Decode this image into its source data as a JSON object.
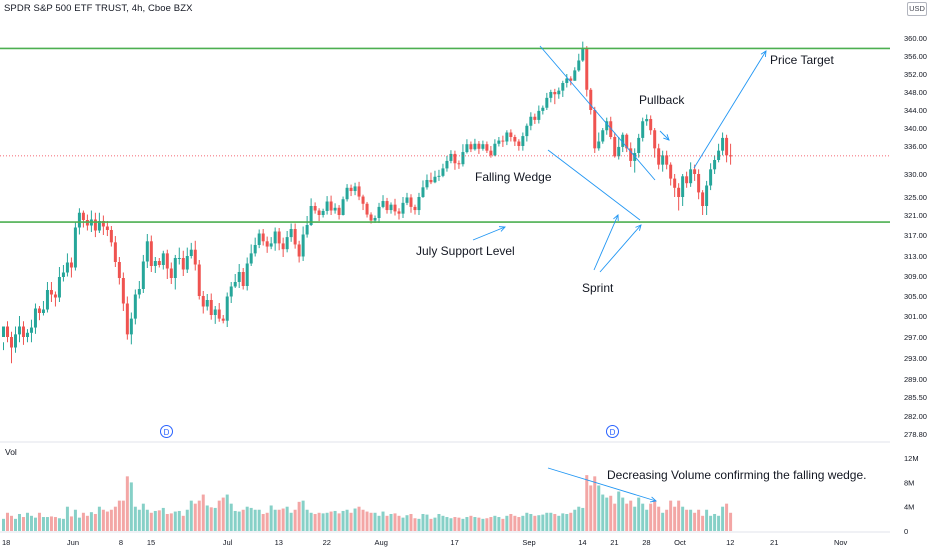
{
  "header": {
    "title": "SPDR S&P 500 ETF TRUST, 4h, Cboe BZX",
    "currency": "USD"
  },
  "volume_pane": {
    "label": "Vol"
  },
  "annotations": {
    "price_target": "Price Target",
    "pullback": "Pullback",
    "falling_wedge": "Falling Wedge",
    "july_support": "July Support Level",
    "sprint": "Sprint",
    "decreasing_volume": "Decreasing Volume confirming the falling wedge."
  },
  "markers": {
    "dividend_1": "D",
    "dividend_2": "D"
  },
  "colors": {
    "up": "#26a69a",
    "down": "#ef5350",
    "vol_up": "#86d0c7",
    "vol_down": "#f3a6a5",
    "level_line": "#4caf50",
    "drawing": "#2196f3",
    "current_price": "#f23645",
    "grid": "#f0f3fa"
  },
  "chart_data": {
    "type": "candlestick",
    "title": "SPDR S&P 500 ETF TRUST, 4h, Cboe BZX",
    "price_ticks": [
      "360.00",
      "356.00",
      "352.00",
      "348.00",
      "344.00",
      "340.00",
      "336.00",
      "330.00",
      "325.00",
      "321.00",
      "317.00",
      "313.00",
      "309.00",
      "305.00",
      "301.00",
      "297.00",
      "293.00",
      "289.00",
      "285.50",
      "282.00",
      "278.80"
    ],
    "price_tick_values": [
      360,
      356,
      352,
      348,
      344,
      340,
      336,
      330,
      325,
      321,
      317,
      313,
      309,
      305,
      301,
      297,
      293,
      289,
      285.5,
      282,
      278.8
    ],
    "volume_ticks": [
      "12M",
      "8M",
      "4M",
      "0"
    ],
    "volume_tick_values": [
      12,
      8,
      4,
      0
    ],
    "time_ticks": [
      {
        "label": "18",
        "idx": 0
      },
      {
        "label": "Jun",
        "idx": 17
      },
      {
        "label": "8",
        "idx": 30
      },
      {
        "label": "15",
        "idx": 37
      },
      {
        "label": "Jul",
        "idx": 56
      },
      {
        "label": "13",
        "idx": 69
      },
      {
        "label": "22",
        "idx": 81
      },
      {
        "label": "Aug",
        "idx": 94
      },
      {
        "label": "17",
        "idx": 113
      },
      {
        "label": "Sep",
        "idx": 131
      },
      {
        "label": "14",
        "idx": 145
      },
      {
        "label": "21",
        "idx": 153
      },
      {
        "label": "28",
        "idx": 161
      },
      {
        "label": "Oct",
        "idx": 169
      },
      {
        "label": "12",
        "idx": 182
      },
      {
        "label": "21",
        "idx": 193
      },
      {
        "label": "Nov",
        "idx": 209
      }
    ],
    "levels": [
      {
        "label": "357.69",
        "value": 357.69
      },
      {
        "label": "319.59",
        "value": 319.59
      }
    ],
    "last_price": {
      "label": "333.88",
      "value": 333.88
    },
    "candles": [
      [
        297.0,
        299.0,
        296.0,
        294.5,
        2.0
      ],
      [
        299.0,
        297.0,
        300.0,
        296.0,
        3.0
      ],
      [
        297.0,
        295.0,
        298.0,
        292.0,
        2.5
      ],
      [
        295.0,
        297.5,
        299.0,
        294.0,
        2.0
      ],
      [
        297.5,
        299.0,
        301.0,
        296.0,
        2.8
      ],
      [
        299.0,
        297.0,
        300.0,
        295.5,
        2.3
      ],
      [
        297.0,
        297.8,
        298.5,
        296.0,
        3.0
      ],
      [
        297.8,
        298.8,
        300.3,
        296.0,
        2.5
      ],
      [
        298.8,
        302.5,
        303.5,
        297.6,
        2.2
      ],
      [
        302.5,
        301.6,
        303.0,
        300.2,
        3.0
      ],
      [
        301.6,
        302.3,
        304.0,
        301.1,
        2.3
      ],
      [
        302.3,
        306.2,
        307.8,
        301.7,
        2.3
      ],
      [
        306.2,
        305.3,
        307.8,
        303.8,
        2.4
      ],
      [
        305.3,
        304.7,
        305.9,
        302.9,
        2.3
      ],
      [
        304.7,
        308.8,
        310.8,
        303.8,
        2.1
      ],
      [
        308.8,
        309.7,
        311.2,
        307.9,
        2.0
      ],
      [
        309.7,
        311.7,
        313.5,
        308.9,
        4.0
      ],
      [
        311.7,
        310.7,
        312.7,
        308.7,
        2.4
      ],
      [
        310.7,
        318.5,
        319.5,
        310.1,
        3.5
      ],
      [
        318.5,
        321.5,
        322.5,
        317.1,
        2.2
      ],
      [
        321.5,
        320.0,
        322.0,
        318.5,
        3.0
      ],
      [
        320.0,
        318.9,
        321.1,
        317.9,
        2.5
      ],
      [
        318.9,
        320.1,
        322.0,
        317.6,
        3.1
      ],
      [
        320.1,
        317.9,
        321.5,
        316.6,
        2.8
      ],
      [
        317.9,
        319.8,
        321.5,
        317.4,
        4.0
      ],
      [
        319.8,
        318.7,
        320.9,
        317.0,
        3.5
      ],
      [
        318.7,
        318.0,
        319.8,
        316.8,
        3.2
      ],
      [
        318.0,
        315.6,
        318.8,
        314.8,
        3.5
      ],
      [
        315.6,
        311.8,
        316.8,
        310.8,
        4.0
      ],
      [
        311.8,
        308.6,
        312.8,
        307.3,
        5.0
      ],
      [
        308.6,
        303.5,
        309.7,
        302.0,
        5.0
      ],
      [
        303.5,
        297.5,
        304.9,
        296.5,
        9.0
      ],
      [
        297.5,
        300.5,
        301.7,
        295.6,
        8.0
      ],
      [
        300.5,
        305.3,
        306.3,
        299.4,
        4.0
      ],
      [
        305.3,
        306.4,
        308.0,
        304.5,
        3.5
      ],
      [
        306.4,
        311.9,
        313.2,
        305.6,
        4.5
      ],
      [
        311.9,
        315.8,
        317.2,
        310.6,
        3.5
      ],
      [
        315.8,
        311.0,
        316.9,
        309.8,
        3.0
      ],
      [
        311.0,
        312.0,
        312.8,
        309.6,
        3.3
      ],
      [
        312.0,
        311.2,
        312.6,
        310.7,
        3.4
      ],
      [
        311.2,
        313.5,
        314.0,
        310.3,
        3.8
      ],
      [
        313.5,
        310.5,
        314.2,
        308.4,
        2.8
      ],
      [
        310.5,
        308.6,
        311.7,
        307.4,
        2.9
      ],
      [
        308.6,
        312.6,
        313.2,
        306.3,
        3.2
      ],
      [
        312.6,
        312.6,
        314.6,
        311.3,
        3.3
      ],
      [
        312.6,
        310.3,
        314.0,
        309.0,
        2.5
      ],
      [
        310.3,
        313.0,
        314.6,
        309.6,
        3.5
      ],
      [
        313.0,
        314.2,
        315.5,
        312.5,
        5.0
      ],
      [
        314.2,
        311.3,
        315.9,
        310.1,
        4.5
      ],
      [
        311.3,
        305.0,
        312.2,
        304.3,
        5.0
      ],
      [
        305.0,
        302.9,
        306.0,
        301.5,
        6.0
      ],
      [
        302.9,
        304.2,
        305.4,
        302.1,
        4.2
      ],
      [
        304.2,
        301.2,
        305.5,
        300.3,
        3.9
      ],
      [
        301.2,
        302.3,
        303.0,
        299.5,
        3.8
      ],
      [
        302.3,
        300.5,
        303.6,
        299.9,
        5.0
      ],
      [
        300.5,
        300.1,
        301.2,
        299.6,
        5.5
      ],
      [
        300.1,
        304.9,
        305.7,
        298.9,
        6.0
      ],
      [
        304.9,
        306.9,
        307.8,
        303.6,
        4.5
      ],
      [
        306.9,
        307.8,
        309.4,
        306.6,
        3.3
      ],
      [
        307.8,
        309.8,
        311.4,
        306.6,
        3.2
      ],
      [
        309.8,
        307.0,
        310.6,
        306.3,
        3.5
      ],
      [
        307.0,
        311.5,
        312.7,
        306.1,
        4.0
      ],
      [
        311.5,
        313.5,
        315.2,
        311.0,
        3.8
      ],
      [
        313.5,
        315.1,
        316.5,
        312.9,
        3.5
      ],
      [
        315.1,
        317.3,
        318.1,
        314.5,
        3.5
      ],
      [
        317.3,
        315.8,
        318.2,
        315.0,
        2.8
      ],
      [
        315.8,
        314.8,
        316.7,
        313.6,
        3.0
      ],
      [
        314.8,
        315.4,
        316.6,
        314.3,
        4.2
      ],
      [
        315.4,
        317.7,
        318.5,
        314.0,
        3.5
      ],
      [
        317.7,
        315.4,
        318.4,
        314.1,
        3.5
      ],
      [
        315.4,
        314.3,
        316.5,
        312.8,
        3.7
      ],
      [
        314.3,
        316.6,
        317.8,
        313.7,
        4.0
      ],
      [
        316.6,
        318.2,
        319.3,
        315.7,
        3.0
      ],
      [
        318.2,
        315.2,
        319.3,
        314.4,
        3.5
      ],
      [
        315.2,
        312.9,
        315.9,
        311.7,
        4.8
      ],
      [
        312.9,
        317.1,
        318.7,
        312.0,
        5.0
      ],
      [
        317.1,
        319.0,
        320.8,
        316.5,
        3.5
      ],
      [
        319.0,
        323.0,
        324.7,
        318.8,
        3.0
      ],
      [
        323.0,
        322.0,
        323.8,
        321.3,
        2.8
      ],
      [
        322.0,
        321.0,
        322.5,
        319.8,
        3.0
      ],
      [
        321.0,
        321.9,
        322.4,
        320.5,
        2.9
      ],
      [
        321.9,
        324.0,
        325.2,
        321.1,
        3.0
      ],
      [
        324.0,
        322.0,
        325.3,
        321.0,
        3.2
      ],
      [
        322.0,
        322.6,
        323.6,
        321.3,
        3.3
      ],
      [
        322.6,
        321.0,
        323.2,
        320.1,
        2.9
      ],
      [
        321.0,
        324.5,
        325.1,
        320.9,
        3.3
      ],
      [
        324.5,
        327.0,
        327.8,
        324.0,
        3.5
      ],
      [
        327.0,
        326.3,
        327.7,
        325.2,
        3.0
      ],
      [
        326.3,
        327.3,
        328.1,
        325.4,
        3.7
      ],
      [
        327.3,
        325.1,
        328.3,
        324.3,
        4.0
      ],
      [
        325.1,
        323.5,
        325.5,
        322.1,
        3.5
      ],
      [
        323.5,
        321.1,
        323.9,
        320.5,
        3.2
      ],
      [
        321.1,
        319.9,
        321.6,
        319.3,
        3.0
      ],
      [
        319.9,
        320.4,
        320.9,
        319.4,
        3.0
      ],
      [
        320.4,
        322.8,
        323.7,
        319.4,
        2.5
      ],
      [
        322.8,
        324.1,
        325.4,
        322.5,
        3.2
      ],
      [
        324.1,
        322.1,
        324.8,
        321.3,
        2.5
      ],
      [
        322.1,
        323.3,
        323.8,
        321.3,
        2.8
      ],
      [
        323.3,
        321.8,
        324.6,
        320.9,
        2.9
      ],
      [
        321.8,
        321.3,
        322.5,
        320.1,
        2.5
      ],
      [
        321.3,
        323.7,
        325.0,
        320.4,
        2.2
      ],
      [
        323.7,
        324.9,
        325.9,
        323.2,
        2.6
      ],
      [
        324.9,
        322.8,
        325.6,
        321.5,
        2.8
      ],
      [
        322.8,
        322.1,
        323.3,
        321.1,
        2.1
      ],
      [
        322.1,
        325.0,
        325.9,
        321.0,
        2.0
      ],
      [
        325.0,
        327.1,
        328.6,
        324.8,
        2.8
      ],
      [
        327.1,
        328.7,
        329.9,
        326.6,
        2.7
      ],
      [
        328.7,
        328.2,
        330.3,
        327.8,
        2.0
      ],
      [
        328.2,
        329.4,
        330.7,
        328.0,
        2.2
      ],
      [
        329.4,
        329.6,
        330.9,
        328.5,
        2.8
      ],
      [
        329.6,
        331.2,
        332.2,
        329.3,
        2.5
      ],
      [
        331.2,
        332.8,
        333.9,
        330.5,
        2.3
      ],
      [
        332.8,
        334.3,
        335.1,
        332.3,
        2.1
      ],
      [
        334.3,
        332.3,
        335.0,
        330.9,
        2.3
      ],
      [
        332.3,
        332.1,
        332.9,
        331.1,
        2.2
      ],
      [
        332.1,
        334.7,
        336.4,
        331.6,
        2.0
      ],
      [
        334.7,
        336.4,
        337.5,
        334.4,
        2.3
      ],
      [
        336.4,
        335.3,
        337.0,
        334.7,
        2.5
      ],
      [
        335.3,
        336.5,
        337.6,
        335.0,
        2.3
      ],
      [
        336.5,
        335.4,
        337.1,
        334.3,
        2.2
      ],
      [
        335.4,
        336.4,
        337.2,
        335.0,
        2.0
      ],
      [
        336.4,
        335.0,
        337.0,
        334.5,
        2.1
      ],
      [
        335.0,
        334.0,
        336.0,
        333.5,
        2.3
      ],
      [
        334.0,
        336.5,
        337.5,
        333.8,
        2.5
      ],
      [
        336.5,
        337.2,
        338.0,
        335.9,
        2.3
      ],
      [
        337.2,
        337.0,
        338.3,
        335.8,
        2.0
      ],
      [
        337.0,
        339.0,
        339.5,
        336.2,
        2.5
      ],
      [
        339.0,
        338.0,
        339.7,
        337.0,
        2.8
      ],
      [
        338.0,
        337.0,
        338.5,
        336.0,
        2.5
      ],
      [
        337.0,
        336.0,
        337.5,
        335.0,
        2.3
      ],
      [
        336.0,
        338.2,
        339.0,
        335.0,
        2.5
      ],
      [
        338.2,
        340.5,
        341.0,
        337.0,
        3.0
      ],
      [
        340.5,
        342.5,
        343.5,
        339.5,
        2.8
      ],
      [
        342.5,
        341.8,
        343.2,
        340.9,
        2.5
      ],
      [
        341.8,
        343.8,
        345.0,
        341.0,
        2.6
      ],
      [
        343.8,
        344.5,
        345.0,
        343.0,
        2.7
      ],
      [
        344.5,
        346.7,
        347.8,
        344.0,
        3.0
      ],
      [
        346.7,
        348.0,
        348.5,
        345.7,
        3.0
      ],
      [
        348.0,
        347.5,
        348.7,
        345.3,
        2.8
      ],
      [
        347.5,
        348.3,
        349.0,
        346.5,
        2.5
      ],
      [
        348.3,
        350.0,
        350.5,
        346.9,
        2.9
      ],
      [
        350.0,
        351.0,
        352.0,
        349.0,
        2.8
      ],
      [
        351.0,
        350.5,
        351.5,
        349.5,
        3.0
      ],
      [
        350.5,
        352.8,
        353.5,
        350.5,
        3.5
      ],
      [
        352.8,
        355.0,
        356.5,
        352.5,
        4.0
      ],
      [
        355.0,
        357.7,
        359.2,
        354.7,
        3.8
      ],
      [
        357.7,
        348.5,
        358.2,
        347.0,
        9.2
      ],
      [
        348.5,
        344.0,
        348.9,
        343.0,
        7.5
      ],
      [
        344.0,
        335.5,
        344.7,
        334.5,
        9.0
      ],
      [
        335.5,
        337.0,
        339.0,
        335.0,
        7.5
      ],
      [
        337.0,
        339.5,
        340.0,
        336.5,
        6.0
      ],
      [
        339.5,
        341.5,
        342.3,
        338.5,
        5.5
      ],
      [
        341.5,
        338.0,
        342.5,
        337.5,
        5.8
      ],
      [
        338.0,
        333.8,
        339.0,
        333.5,
        4.5
      ],
      [
        333.8,
        335.8,
        338.0,
        333.1,
        6.5
      ],
      [
        335.8,
        338.5,
        339.0,
        334.7,
        5.5
      ],
      [
        338.5,
        335.5,
        338.8,
        334.7,
        4.5
      ],
      [
        335.5,
        332.8,
        336.8,
        331.5,
        5.0
      ],
      [
        332.8,
        334.5,
        335.5,
        330.3,
        4.0
      ],
      [
        334.5,
        337.8,
        338.7,
        333.5,
        5.5
      ],
      [
        337.8,
        341.5,
        342.3,
        337.0,
        4.5
      ],
      [
        341.5,
        342.0,
        343.0,
        340.5,
        3.5
      ],
      [
        342.0,
        339.5,
        342.8,
        338.5,
        4.5
      ],
      [
        339.5,
        335.5,
        340.0,
        333.5,
        5.0
      ],
      [
        335.5,
        332.0,
        336.5,
        331.0,
        4.0
      ],
      [
        332.0,
        334.0,
        335.0,
        330.5,
        3.0
      ],
      [
        334.0,
        332.0,
        335.0,
        331.0,
        3.5
      ],
      [
        332.0,
        329.0,
        332.5,
        327.5,
        5.0
      ],
      [
        329.0,
        327.0,
        330.0,
        325.0,
        4.0
      ],
      [
        327.0,
        325.0,
        328.0,
        322.0,
        5.0
      ],
      [
        325.0,
        329.5,
        330.0,
        323.0,
        4.0
      ],
      [
        329.5,
        328.0,
        330.5,
        327.0,
        3.5
      ],
      [
        328.0,
        331.0,
        332.5,
        327.2,
        3.5
      ],
      [
        331.0,
        330.0,
        332.0,
        328.5,
        3.0
      ],
      [
        330.0,
        326.0,
        331.0,
        324.5,
        3.5
      ],
      [
        326.0,
        323.0,
        326.5,
        321.0,
        2.5
      ],
      [
        323.0,
        327.5,
        328.5,
        321.0,
        3.5
      ],
      [
        327.5,
        331.0,
        332.3,
        326.5,
        2.5
      ],
      [
        331.0,
        333.0,
        334.0,
        330.0,
        2.8
      ],
      [
        333.0,
        335.0,
        336.5,
        332.5,
        2.5
      ],
      [
        335.0,
        337.8,
        339.0,
        334.0,
        4.0
      ],
      [
        337.8,
        334.0,
        338.5,
        332.5,
        4.5
      ],
      [
        334.0,
        333.88,
        336.5,
        332.0,
        3.0
      ]
    ],
    "candle_start_index": 0
  }
}
